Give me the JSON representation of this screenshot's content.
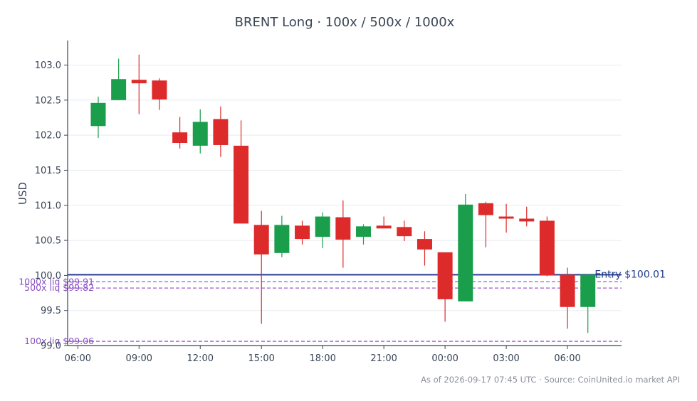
{
  "chart_data": {
    "type": "candlestick",
    "title": "BRENT Long · 100x / 500x / 1000x",
    "ylabel": "USD",
    "xlabel": "",
    "ylim": [
      99.0,
      103.35
    ],
    "yticks": [
      "99.0",
      "99.5",
      "100.0",
      "100.5",
      "101.0",
      "101.5",
      "102.0",
      "102.5",
      "103.0"
    ],
    "ytick_values": [
      99.0,
      99.5,
      100.0,
      100.5,
      101.0,
      101.5,
      102.0,
      102.5,
      103.0
    ],
    "xlim_hours": [
      5.5,
      32.65
    ],
    "xticks": [
      "06:00",
      "09:00",
      "12:00",
      "15:00",
      "18:00",
      "21:00",
      "00:00",
      "03:00",
      "06:00"
    ],
    "xtick_values": [
      6,
      9,
      12,
      15,
      18,
      21,
      24,
      27,
      30
    ],
    "grid": "horizontal",
    "colors": {
      "up": "#1a9e4b",
      "down": "#dd2a2a",
      "entry": "#2c3e91",
      "liq": "#9b59d0",
      "axis": "#3a4556"
    },
    "candles": [
      {
        "t": 7,
        "o": 102.13,
        "h": 102.55,
        "l": 101.96,
        "c": 102.46
      },
      {
        "t": 8,
        "o": 102.5,
        "h": 103.09,
        "l": 102.5,
        "c": 102.8
      },
      {
        "t": 9,
        "o": 102.79,
        "h": 103.15,
        "l": 102.3,
        "c": 102.74
      },
      {
        "t": 10,
        "o": 102.78,
        "h": 102.81,
        "l": 102.36,
        "c": 102.51
      },
      {
        "t": 11,
        "o": 102.04,
        "h": 102.26,
        "l": 101.81,
        "c": 101.89
      },
      {
        "t": 12,
        "o": 101.85,
        "h": 102.37,
        "l": 101.74,
        "c": 102.19
      },
      {
        "t": 13,
        "o": 102.23,
        "h": 102.41,
        "l": 101.69,
        "c": 101.86
      },
      {
        "t": 14,
        "o": 101.85,
        "h": 102.21,
        "l": 100.74,
        "c": 100.74
      },
      {
        "t": 15,
        "o": 100.72,
        "h": 100.92,
        "l": 99.31,
        "c": 100.3
      },
      {
        "t": 16,
        "o": 100.32,
        "h": 100.85,
        "l": 100.26,
        "c": 100.72
      },
      {
        "t": 17,
        "o": 100.71,
        "h": 100.78,
        "l": 100.44,
        "c": 100.52
      },
      {
        "t": 18,
        "o": 100.55,
        "h": 100.9,
        "l": 100.39,
        "c": 100.84
      },
      {
        "t": 19,
        "o": 100.83,
        "h": 101.07,
        "l": 100.11,
        "c": 100.51
      },
      {
        "t": 20,
        "o": 100.55,
        "h": 100.73,
        "l": 100.44,
        "c": 100.7
      },
      {
        "t": 21,
        "o": 100.71,
        "h": 100.84,
        "l": 100.67,
        "c": 100.67
      },
      {
        "t": 22,
        "o": 100.69,
        "h": 100.78,
        "l": 100.49,
        "c": 100.56
      },
      {
        "t": 23,
        "o": 100.52,
        "h": 100.63,
        "l": 100.14,
        "c": 100.37
      },
      {
        "t": 24,
        "o": 100.33,
        "h": 100.33,
        "l": 99.34,
        "c": 99.66
      },
      {
        "t": 25,
        "o": 99.63,
        "h": 101.16,
        "l": 99.63,
        "c": 101.01
      },
      {
        "t": 26,
        "o": 101.03,
        "h": 101.05,
        "l": 100.4,
        "c": 100.86
      },
      {
        "t": 27,
        "o": 100.84,
        "h": 101.02,
        "l": 100.61,
        "c": 100.81
      },
      {
        "t": 28,
        "o": 100.81,
        "h": 100.98,
        "l": 100.7,
        "c": 100.77
      },
      {
        "t": 29,
        "o": 100.78,
        "h": 100.84,
        "l": 99.99,
        "c": 100.0
      },
      {
        "t": 30,
        "o": 100.01,
        "h": 100.11,
        "l": 99.24,
        "c": 99.55
      },
      {
        "t": 31,
        "o": 99.55,
        "h": 100.02,
        "l": 99.18,
        "c": 100.01
      }
    ],
    "entry": {
      "value": 100.01,
      "label": "Entry $100.01"
    },
    "liquidations": [
      {
        "value": 99.91,
        "label": "1000x liq $99.91"
      },
      {
        "value": 99.82,
        "label": "500x liq $99.82"
      },
      {
        "value": 99.06,
        "label": "100x liq $99.06"
      }
    ],
    "footer": "As of 2026-09-17 07:45 UTC · Source: CoinUnited.io market API"
  }
}
